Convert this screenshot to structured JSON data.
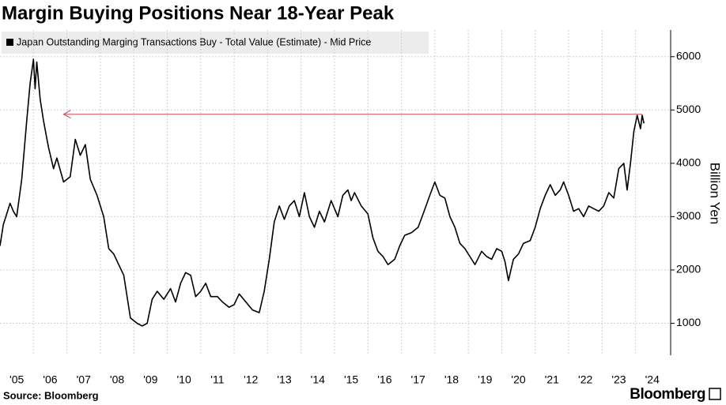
{
  "chart_data": {
    "type": "line",
    "title": "Margin Buying Positions Near 18-Year Peak",
    "y_axis_label": "Billion Yen",
    "source": "Source: Bloomberg",
    "logo": "Bloomberg",
    "x": [
      2005.0,
      2005.1,
      2005.2,
      2005.3,
      2005.4,
      2005.5,
      2005.65,
      2005.8,
      2005.9,
      2006.0,
      2006.05,
      2006.1,
      2006.2,
      2006.3,
      2006.45,
      2006.6,
      2006.7,
      2006.9,
      2007.1,
      2007.25,
      2007.4,
      2007.55,
      2007.7,
      2007.9,
      2008.1,
      2008.25,
      2008.4,
      2008.55,
      2008.7,
      2008.8,
      2008.9,
      2009.1,
      2009.25,
      2009.4,
      2009.55,
      2009.7,
      2009.9,
      2010.1,
      2010.25,
      2010.4,
      2010.55,
      2010.7,
      2010.85,
      2011.0,
      2011.15,
      2011.3,
      2011.5,
      2011.65,
      2011.85,
      2012.0,
      2012.15,
      2012.35,
      2012.55,
      2012.75,
      2012.9,
      2013.05,
      2013.2,
      2013.35,
      2013.5,
      2013.65,
      2013.8,
      2013.95,
      2014.1,
      2014.25,
      2014.4,
      2014.55,
      2014.7,
      2014.9,
      2015.1,
      2015.25,
      2015.4,
      2015.5,
      2015.6,
      2015.8,
      2016.0,
      2016.15,
      2016.3,
      2016.45,
      2016.6,
      2016.8,
      2016.95,
      2017.1,
      2017.3,
      2017.5,
      2017.65,
      2017.85,
      2018.0,
      2018.15,
      2018.3,
      2018.45,
      2018.6,
      2018.75,
      2018.9,
      2019.05,
      2019.2,
      2019.4,
      2019.55,
      2019.7,
      2019.85,
      2020.0,
      2020.1,
      2020.2,
      2020.35,
      2020.5,
      2020.65,
      2020.85,
      2021.0,
      2021.15,
      2021.3,
      2021.45,
      2021.6,
      2021.75,
      2021.85,
      2022.0,
      2022.15,
      2022.3,
      2022.45,
      2022.6,
      2022.75,
      2022.9,
      2023.05,
      2023.2,
      2023.35,
      2023.5,
      2023.65,
      2023.75,
      2023.85,
      2023.95,
      2024.05,
      2024.15,
      2024.2,
      2024.25
    ],
    "series": [
      {
        "name": "Japan Outstanding Marging Transactions Buy - Total Value (Estimate) - Mid Price",
        "color": "#000000",
        "values": [
          2450,
          2850,
          3050,
          3250,
          3100,
          3000,
          3700,
          4800,
          5500,
          5950,
          5400,
          5900,
          5200,
          4800,
          4300,
          3900,
          4100,
          3650,
          3750,
          4450,
          4150,
          4350,
          3700,
          3400,
          3000,
          2400,
          2300,
          2100,
          1900,
          1500,
          1100,
          1000,
          950,
          1000,
          1450,
          1600,
          1450,
          1650,
          1400,
          1750,
          1950,
          1900,
          1500,
          1600,
          1750,
          1500,
          1500,
          1400,
          1300,
          1350,
          1550,
          1400,
          1250,
          1200,
          1600,
          2200,
          2900,
          3200,
          2950,
          3200,
          3300,
          3000,
          3450,
          3000,
          2800,
          3100,
          2900,
          3300,
          3000,
          3400,
          3500,
          3300,
          3450,
          3200,
          3050,
          2600,
          2350,
          2250,
          2100,
          2200,
          2450,
          2650,
          2700,
          2800,
          3050,
          3400,
          3650,
          3400,
          3350,
          3000,
          2800,
          2500,
          2400,
          2250,
          2100,
          2350,
          2250,
          2200,
          2400,
          2350,
          2150,
          1800,
          2200,
          2300,
          2500,
          2550,
          2800,
          3150,
          3400,
          3600,
          3400,
          3500,
          3650,
          3400,
          3100,
          3150,
          3000,
          3200,
          3150,
          3100,
          3200,
          3450,
          3350,
          3900,
          4000,
          3500,
          4000,
          4600,
          4900,
          4650,
          4900,
          4750
        ]
      }
    ],
    "reference_line": {
      "value": 4920,
      "x": [
        2006.9,
        2024.2
      ],
      "color": "#c94a55"
    },
    "xlim": [
      2005.0,
      2025.05
    ],
    "ylim": [
      400,
      6500
    ],
    "yticks": [
      1000,
      2000,
      3000,
      4000,
      5000,
      6000
    ],
    "xticks": [
      {
        "value": 2005.5,
        "label": "'05"
      },
      {
        "value": 2006.5,
        "label": "'06"
      },
      {
        "value": 2007.5,
        "label": "'07"
      },
      {
        "value": 2008.5,
        "label": "'08"
      },
      {
        "value": 2009.5,
        "label": "'09"
      },
      {
        "value": 2010.5,
        "label": "'10"
      },
      {
        "value": 2011.5,
        "label": "'11"
      },
      {
        "value": 2012.5,
        "label": "'12"
      },
      {
        "value": 2013.5,
        "label": "'13"
      },
      {
        "value": 2014.5,
        "label": "'14"
      },
      {
        "value": 2015.5,
        "label": "'15"
      },
      {
        "value": 2016.5,
        "label": "'16"
      },
      {
        "value": 2017.5,
        "label": "'17"
      },
      {
        "value": 2018.5,
        "label": "'18"
      },
      {
        "value": 2019.5,
        "label": "'19"
      },
      {
        "value": 2020.5,
        "label": "'20"
      },
      {
        "value": 2021.5,
        "label": "'21"
      },
      {
        "value": 2022.5,
        "label": "'22"
      },
      {
        "value": 2023.5,
        "label": "'23"
      },
      {
        "value": 2024.5,
        "label": "'24"
      }
    ],
    "xgrid": [
      2006,
      2007,
      2008,
      2009,
      2010,
      2011,
      2012,
      2013,
      2014,
      2015,
      2016,
      2017,
      2018,
      2019,
      2020,
      2021,
      2022,
      2023,
      2024
    ],
    "grid": true
  }
}
